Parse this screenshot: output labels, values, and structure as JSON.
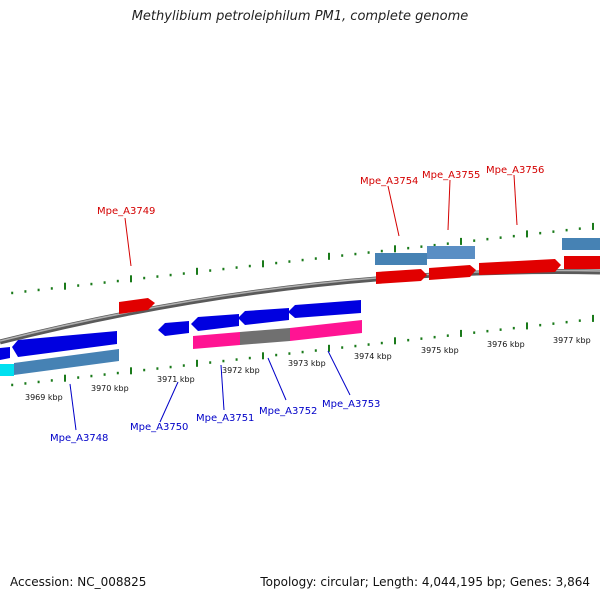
{
  "title": "Methylibium petroleiphilum PM1, complete genome",
  "footer": {
    "accession": "Accession: NC_008825",
    "summary": "Topology: circular; Length: 4,044,195 bp; Genes: 3,864"
  },
  "kbp_labels": [
    "3969 kbp",
    "3970 kbp",
    "3971 kbp",
    "3972 kbp",
    "3973 kbp",
    "3974 kbp",
    "3975 kbp",
    "3976 kbp",
    "3977 kbp"
  ],
  "gene_labels_top": [
    "Mpe_A3749",
    "Mpe_A3754",
    "Mpe_A3755",
    "Mpe_A3756"
  ],
  "gene_labels_bottom": [
    "Mpe_A3748",
    "Mpe_A3750",
    "Mpe_A3751",
    "Mpe_A3752",
    "Mpe_A3753"
  ],
  "colors": {
    "forward_gene": "#e10000",
    "reverse_gene": "#0000e0",
    "forward_cds": "#4682b4",
    "reverse_cds": "#4682b4",
    "rna": "#ff1493",
    "misc": "#707070",
    "cyan_feature": "#00e0f0",
    "backbone": "#888888",
    "tick": "#1a7a1a"
  }
}
